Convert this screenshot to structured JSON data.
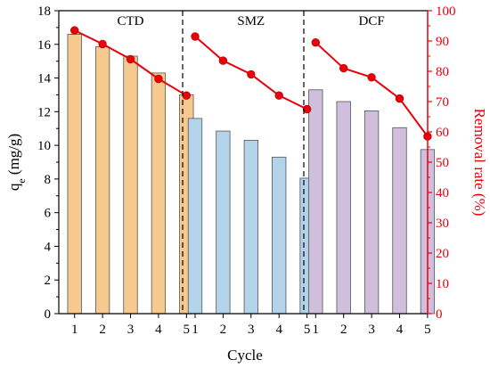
{
  "chart_data": {
    "type": "bar",
    "xlabel": "Cycle",
    "ylabel_main": "q",
    "ylabel_sub": "e",
    "ylabel_unit": " (mg/g)",
    "ylabel_right": "Removal rate (%)",
    "ylim": [
      0,
      18
    ],
    "ylim_right": [
      0,
      100
    ],
    "yticks": [
      "0",
      "2",
      "4",
      "6",
      "8",
      "10",
      "12",
      "14",
      "16",
      "18"
    ],
    "yticks_right": [
      "0",
      "10",
      "20",
      "30",
      "40",
      "50",
      "60",
      "70",
      "80",
      "90",
      "100"
    ],
    "groups": [
      {
        "name": "CTD",
        "bar_color": "#f6c98e",
        "categories": [
          "1",
          "2",
          "3",
          "4",
          "5"
        ],
        "qe": [
          16.6,
          15.85,
          15.3,
          14.3,
          13.0
        ],
        "removal_rate": [
          93.5,
          89.0,
          84.0,
          77.5,
          72.0
        ]
      },
      {
        "name": "SMZ",
        "bar_color": "#b3d3ea",
        "categories": [
          "1",
          "2",
          "3",
          "4",
          "5"
        ],
        "qe": [
          11.6,
          10.85,
          10.3,
          9.3,
          8.05
        ],
        "removal_rate": [
          91.5,
          83.5,
          79.0,
          72.0,
          67.5
        ]
      },
      {
        "name": "DCF",
        "bar_color": "#cfbfdc",
        "categories": [
          "1",
          "2",
          "3",
          "4",
          "5"
        ],
        "qe": [
          13.3,
          12.6,
          12.05,
          11.05,
          9.75
        ],
        "removal_rate": [
          89.5,
          81.0,
          78.0,
          71.0,
          58.5
        ]
      }
    ],
    "line_color": "#e8000b",
    "bar_edge": "#555555",
    "divider": "dashed"
  }
}
